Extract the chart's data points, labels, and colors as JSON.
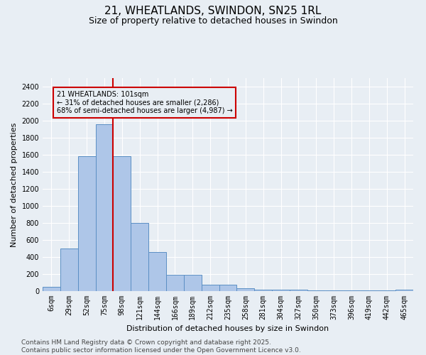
{
  "title": "21, WHEATLANDS, SWINDON, SN25 1RL",
  "subtitle": "Size of property relative to detached houses in Swindon",
  "xlabel": "Distribution of detached houses by size in Swindon",
  "ylabel": "Number of detached properties",
  "categories": [
    "6sqm",
    "29sqm",
    "52sqm",
    "75sqm",
    "98sqm",
    "121sqm",
    "144sqm",
    "166sqm",
    "189sqm",
    "212sqm",
    "235sqm",
    "258sqm",
    "281sqm",
    "304sqm",
    "327sqm",
    "350sqm",
    "373sqm",
    "396sqm",
    "419sqm",
    "442sqm",
    "465sqm"
  ],
  "values": [
    50,
    500,
    1580,
    1960,
    1580,
    800,
    460,
    195,
    195,
    75,
    75,
    30,
    20,
    15,
    15,
    10,
    10,
    5,
    5,
    5,
    20
  ],
  "bar_color": "#aec6e8",
  "bar_edge_color": "#5b8fc4",
  "vline_x_index": 4,
  "vline_color": "#cc0000",
  "annotation_text": "21 WHEATLANDS: 101sqm\n← 31% of detached houses are smaller (2,286)\n68% of semi-detached houses are larger (4,987) →",
  "annotation_box_color": "#cc0000",
  "ylim": [
    0,
    2500
  ],
  "yticks": [
    0,
    200,
    400,
    600,
    800,
    1000,
    1200,
    1400,
    1600,
    1800,
    2000,
    2200,
    2400
  ],
  "background_color": "#e8eef4",
  "grid_color": "#ffffff",
  "footer_line1": "Contains HM Land Registry data © Crown copyright and database right 2025.",
  "footer_line2": "Contains public sector information licensed under the Open Government Licence v3.0.",
  "title_fontsize": 11,
  "subtitle_fontsize": 9,
  "footer_fontsize": 6.5,
  "axis_label_fontsize": 8,
  "tick_fontsize": 7
}
